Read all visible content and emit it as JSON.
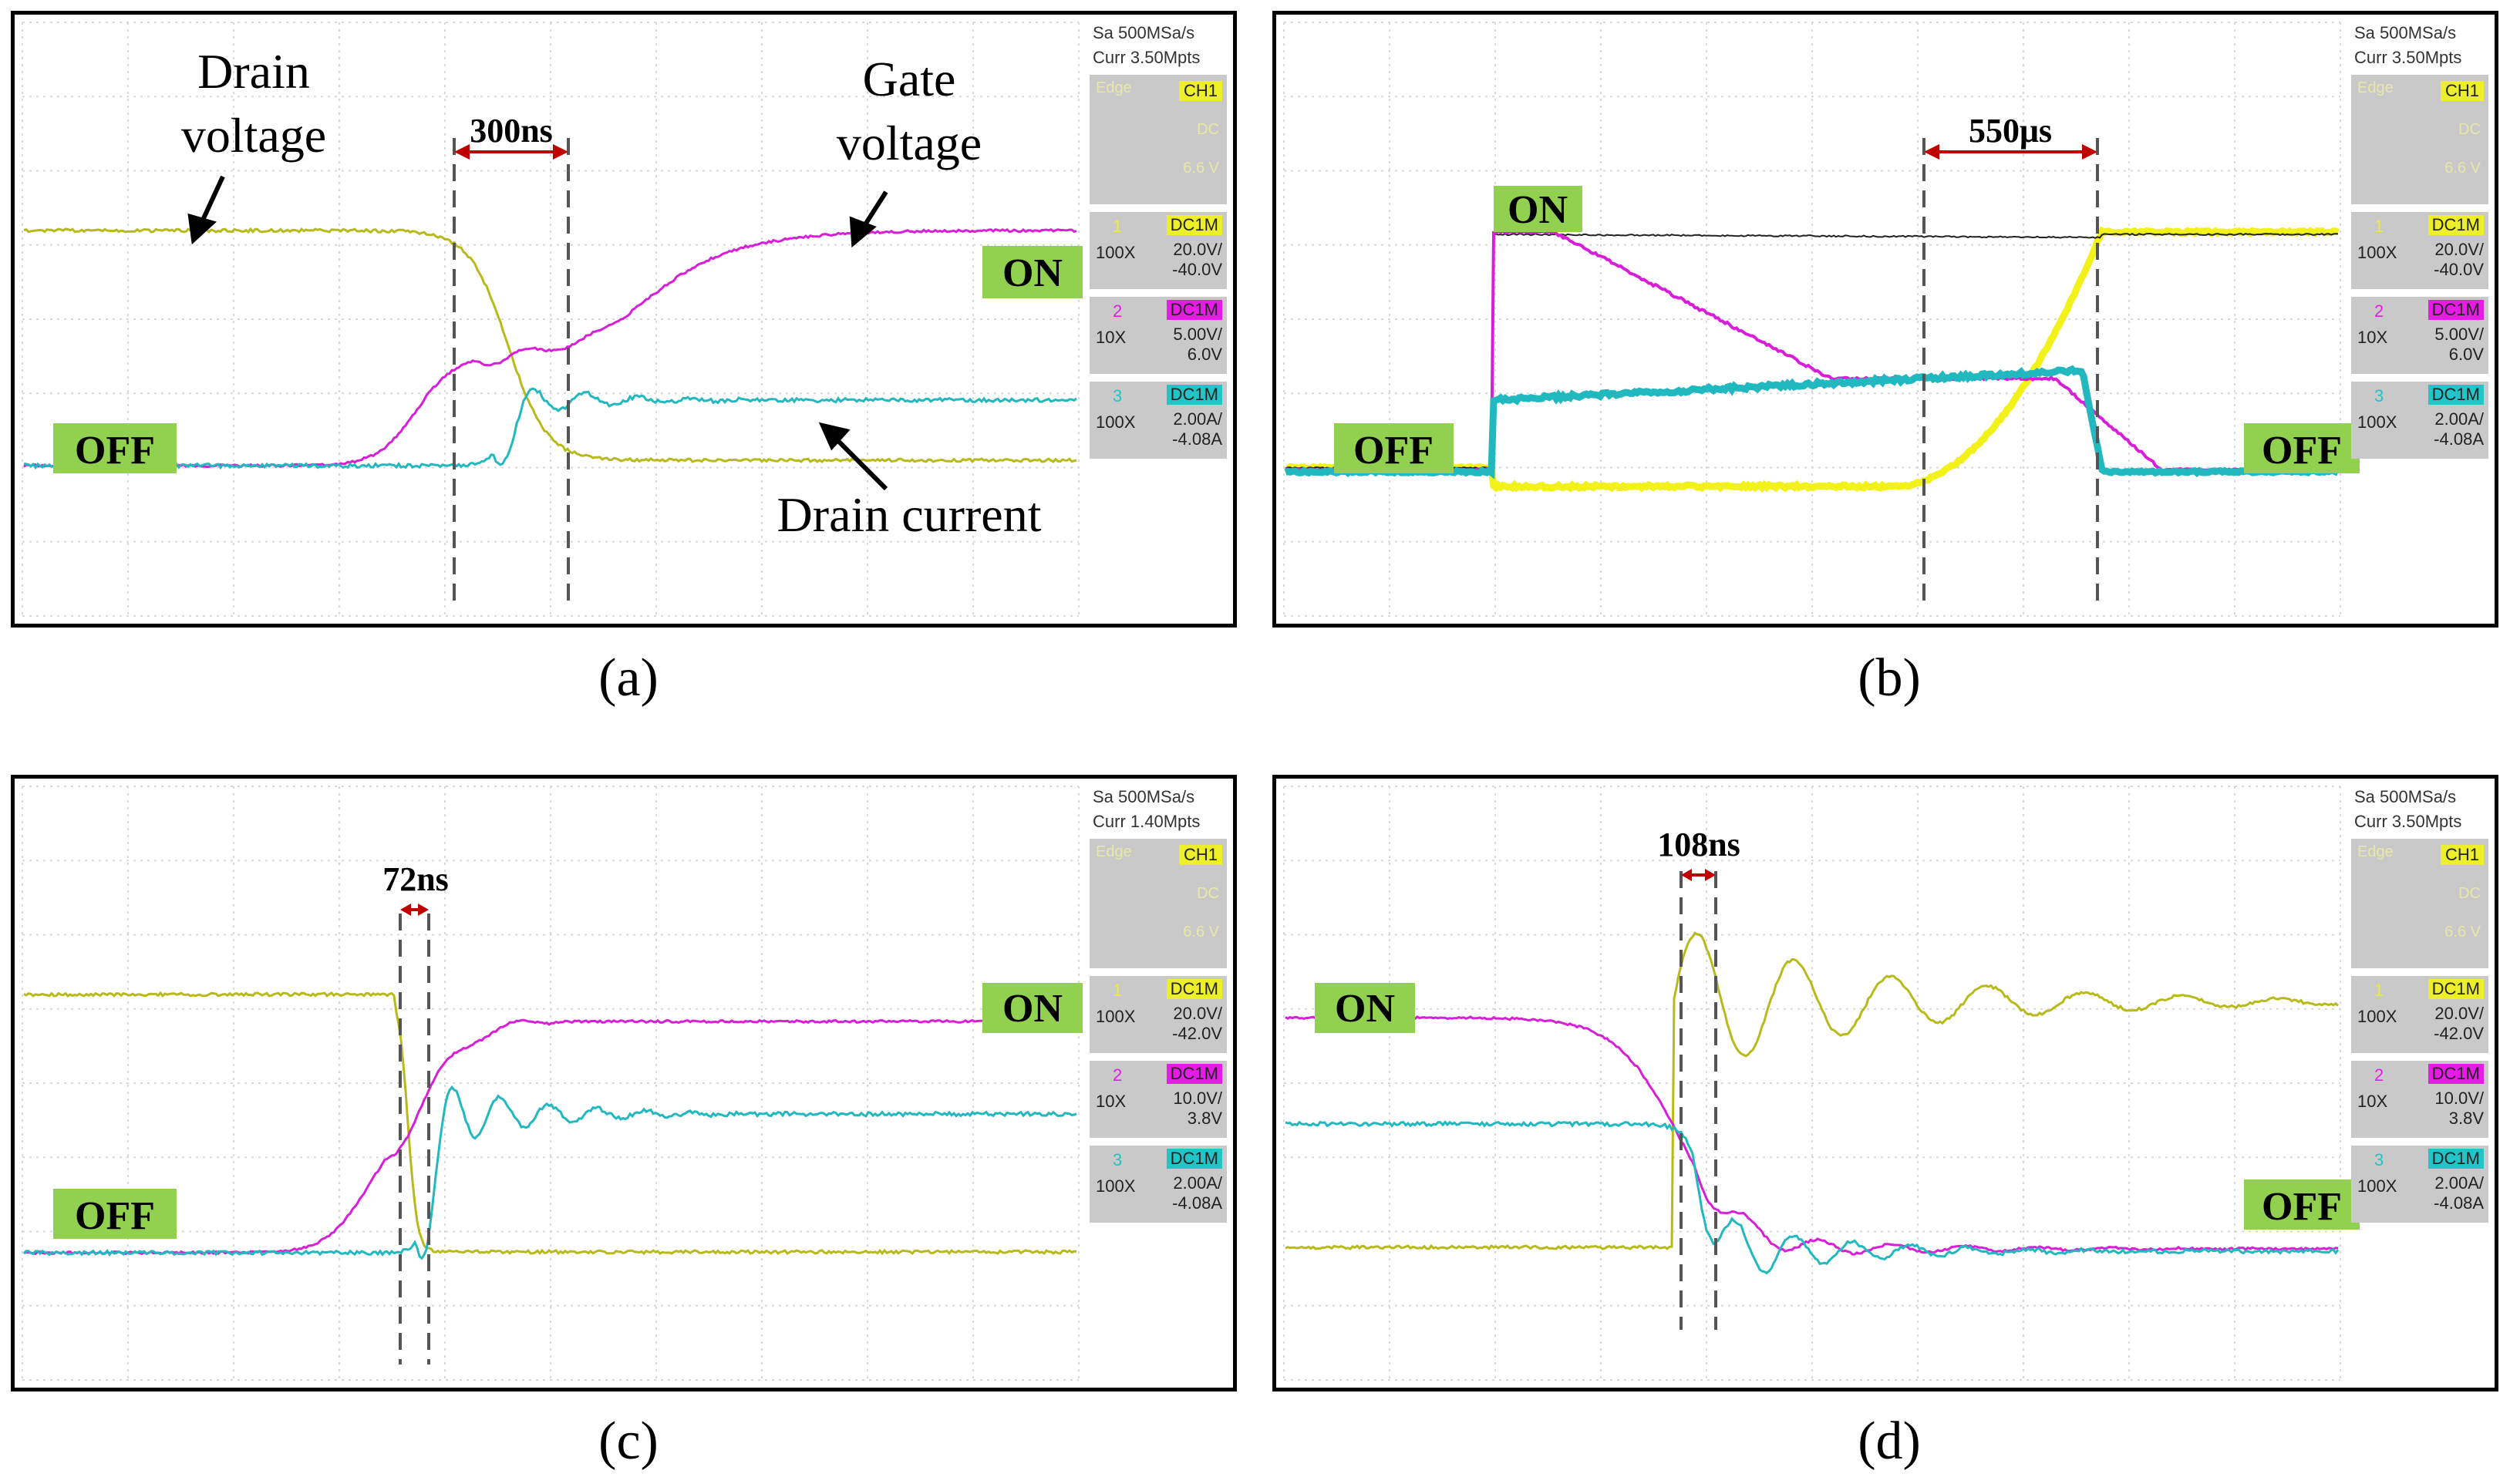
{
  "panels": [
    {
      "id": "a",
      "caption": "(a)",
      "sidebar": {
        "sample_rate": "Sa 500MSa/s",
        "curr": "Curr 3.50Mpts",
        "trigger_channel": "CH1",
        "trigger_mode": "Edge",
        "trigger_coupling": "DC",
        "trigger_level": "6.6 V"
      },
      "channels": [
        {
          "num": "1",
          "coupling": "DC1M",
          "probe": "100X",
          "scale": "20.0V/",
          "offset": "-40.0V",
          "color": "#ecef2a"
        },
        {
          "num": "2",
          "coupling": "DC1M",
          "probe": "10X",
          "scale": "5.00V/",
          "offset": "6.0V",
          "color": "#e61ce6"
        },
        {
          "num": "3",
          "coupling": "DC1M",
          "probe": "100X",
          "scale": "2.00A/",
          "offset": "-4.08A",
          "color": "#22c4c8"
        }
      ],
      "interval": "300ns",
      "labels": {
        "drain_voltage_1": "Drain",
        "drain_voltage_2": "voltage",
        "gate_voltage_1": "Gate",
        "gate_voltage_2": "voltage",
        "drain_current": "Drain current",
        "off": "OFF",
        "on": "ON"
      }
    },
    {
      "id": "b",
      "caption": "(b)",
      "sidebar": {
        "sample_rate": "Sa 500MSa/s",
        "curr": "Curr 3.50Mpts",
        "trigger_channel": "CH1",
        "trigger_mode": "Edge",
        "trigger_coupling": "DC",
        "trigger_level": "6.6 V"
      },
      "channels": [
        {
          "num": "1",
          "coupling": "DC1M",
          "probe": "100X",
          "scale": "20.0V/",
          "offset": "-40.0V",
          "color": "#ecef2a"
        },
        {
          "num": "2",
          "coupling": "DC1M",
          "probe": "10X",
          "scale": "5.00V/",
          "offset": "6.0V",
          "color": "#e61ce6"
        },
        {
          "num": "3",
          "coupling": "DC1M",
          "probe": "100X",
          "scale": "2.00A/",
          "offset": "-4.08A",
          "color": "#22c4c8"
        }
      ],
      "interval": "550μs",
      "labels": {
        "on": "ON",
        "off_left": "OFF",
        "off_right": "OFF"
      }
    },
    {
      "id": "c",
      "caption": "(c)",
      "sidebar": {
        "sample_rate": "Sa 500MSa/s",
        "curr": "Curr 1.40Mpts",
        "trigger_channel": "CH1",
        "trigger_mode": "Edge",
        "trigger_coupling": "DC",
        "trigger_level": "6.6 V"
      },
      "channels": [
        {
          "num": "1",
          "coupling": "DC1M",
          "probe": "100X",
          "scale": "20.0V/",
          "offset": "-42.0V",
          "color": "#ecef2a"
        },
        {
          "num": "2",
          "coupling": "DC1M",
          "probe": "10X",
          "scale": "10.0V/",
          "offset": "3.8V",
          "color": "#e61ce6"
        },
        {
          "num": "3",
          "coupling": "DC1M",
          "probe": "100X",
          "scale": "2.00A/",
          "offset": "-4.08A",
          "color": "#22c4c8"
        }
      ],
      "interval": "72ns",
      "labels": {
        "on": "ON",
        "off": "OFF"
      }
    },
    {
      "id": "d",
      "caption": "(d)",
      "sidebar": {
        "sample_rate": "Sa 500MSa/s",
        "curr": "Curr 3.50Mpts",
        "trigger_channel": "CH1",
        "trigger_mode": "Edge",
        "trigger_coupling": "DC",
        "trigger_level": "6.6 V"
      },
      "channels": [
        {
          "num": "1",
          "coupling": "DC1M",
          "probe": "100X",
          "scale": "20.0V/",
          "offset": "-42.0V",
          "color": "#ecef2a"
        },
        {
          "num": "2",
          "coupling": "DC1M",
          "probe": "10X",
          "scale": "10.0V/",
          "offset": "3.8V",
          "color": "#e61ce6"
        },
        {
          "num": "3",
          "coupling": "DC1M",
          "probe": "100X",
          "scale": "2.00A/",
          "offset": "-4.08A",
          "color": "#22c4c8"
        }
      ],
      "interval": "108ns",
      "labels": {
        "on": "ON",
        "off": "OFF"
      }
    }
  ],
  "chart_data": [
    {
      "type": "line",
      "title": "(a)",
      "series": [
        {
          "name": "Drain voltage",
          "trace": "ch1"
        },
        {
          "name": "Gate voltage",
          "trace": "ch2"
        },
        {
          "name": "Drain current",
          "trace": "ch3"
        }
      ],
      "annotation": "300ns"
    },
    {
      "type": "line",
      "title": "(b)",
      "series": [
        {
          "name": "CH1",
          "trace": "ch1"
        },
        {
          "name": "CH2",
          "trace": "ch2"
        },
        {
          "name": "CH3",
          "trace": "ch3"
        }
      ],
      "annotation": "550μs"
    },
    {
      "type": "line",
      "title": "(c)",
      "series": [
        {
          "name": "CH1",
          "trace": "ch1"
        },
        {
          "name": "CH2",
          "trace": "ch2"
        },
        {
          "name": "CH3",
          "trace": "ch3"
        }
      ],
      "annotation": "72ns"
    },
    {
      "type": "line",
      "title": "(d)",
      "series": [
        {
          "name": "CH1",
          "trace": "ch1"
        },
        {
          "name": "CH2",
          "trace": "ch2"
        },
        {
          "name": "CH3",
          "trace": "ch3"
        }
      ],
      "annotation": "108ns"
    }
  ]
}
